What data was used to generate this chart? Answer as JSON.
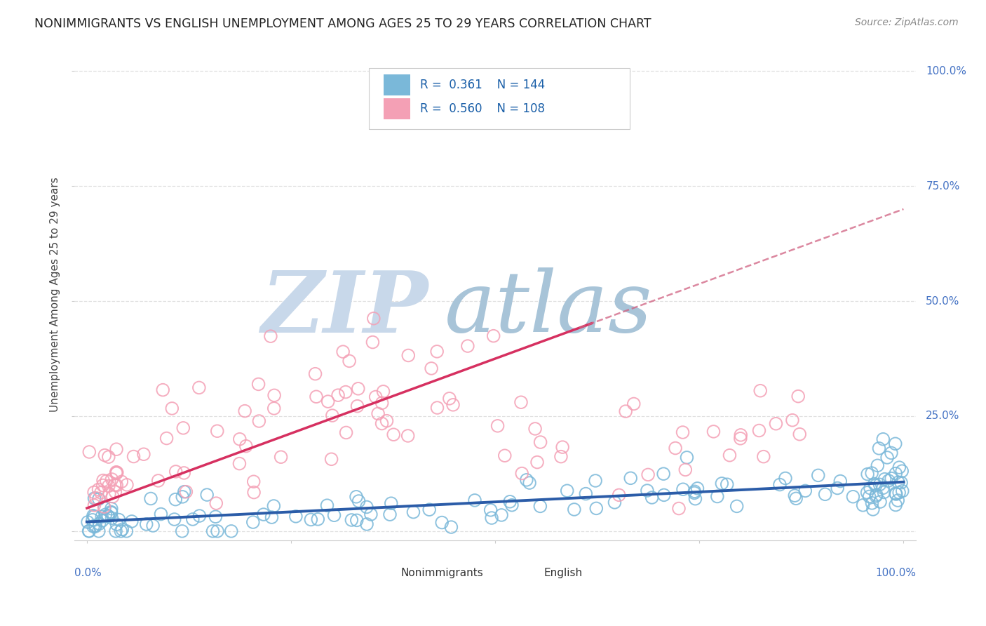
{
  "title": "NONIMMIGRANTS VS ENGLISH UNEMPLOYMENT AMONG AGES 25 TO 29 YEARS CORRELATION CHART",
  "source": "Source: ZipAtlas.com",
  "ylabel": "Unemployment Among Ages 25 to 29 years",
  "watermark_zip": "ZIP",
  "watermark_atlas": "atlas",
  "legend_label1": "Nonimmigrants",
  "legend_label2": "English",
  "R1": 0.361,
  "N1": 144,
  "R2": 0.56,
  "N2": 108,
  "blue_color": "#7ab8d9",
  "pink_color": "#f4a0b5",
  "blue_marker_edge": "#7ab8d9",
  "pink_marker_edge": "#f4a0b5",
  "blue_line_color": "#2b5ca8",
  "pink_line_color": "#d63060",
  "pink_dash_color": "#d06080",
  "title_color": "#222222",
  "source_color": "#888888",
  "axis_label_color": "#4472c4",
  "legend_text_color": "#1a5fa8",
  "grid_color": "#e0e0e0",
  "background_color": "#ffffff",
  "watermark_zip_color": "#c8d8ea",
  "watermark_atlas_color": "#a8c4d8",
  "blue_seed": 42,
  "pink_seed": 123
}
